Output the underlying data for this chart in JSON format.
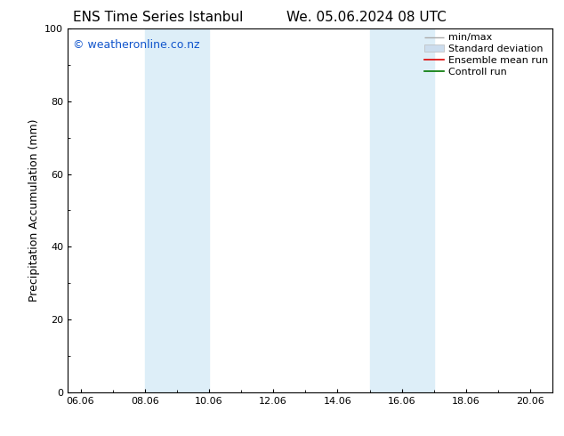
{
  "title_left": "ENS Time Series Istanbul",
  "title_right": "We. 05.06.2024 08 UTC",
  "ylabel": "Precipitation Accumulation (mm)",
  "ylim": [
    0,
    100
  ],
  "yticks": [
    0,
    20,
    40,
    60,
    80,
    100
  ],
  "watermark": "© weatheronline.co.nz",
  "watermark_color": "#1155cc",
  "background_color": "#ffffff",
  "plot_bg_color": "#ffffff",
  "shaded_regions": [
    {
      "xmin": 8.0,
      "xmax": 10.0,
      "color": "#ddeef8"
    },
    {
      "xmin": 15.0,
      "xmax": 17.0,
      "color": "#ddeef8"
    }
  ],
  "xtick_labels": [
    "06.06",
    "08.06",
    "10.06",
    "12.06",
    "14.06",
    "16.06",
    "18.06",
    "20.06"
  ],
  "xtick_positions": [
    6.0,
    8.0,
    10.0,
    12.0,
    14.0,
    16.0,
    18.0,
    20.0
  ],
  "xmin": 5.6,
  "xmax": 20.7,
  "legend_labels": [
    "min/max",
    "Standard deviation",
    "Ensemble mean run",
    "Controll run"
  ],
  "legend_colors_line": [
    "#aaaaaa",
    "#bbbbbb",
    "#dd0000",
    "#007700"
  ],
  "legend_fill_color": "#ccddee",
  "title_fontsize": 11,
  "axis_label_fontsize": 9,
  "tick_fontsize": 8,
  "watermark_fontsize": 9,
  "legend_fontsize": 8
}
